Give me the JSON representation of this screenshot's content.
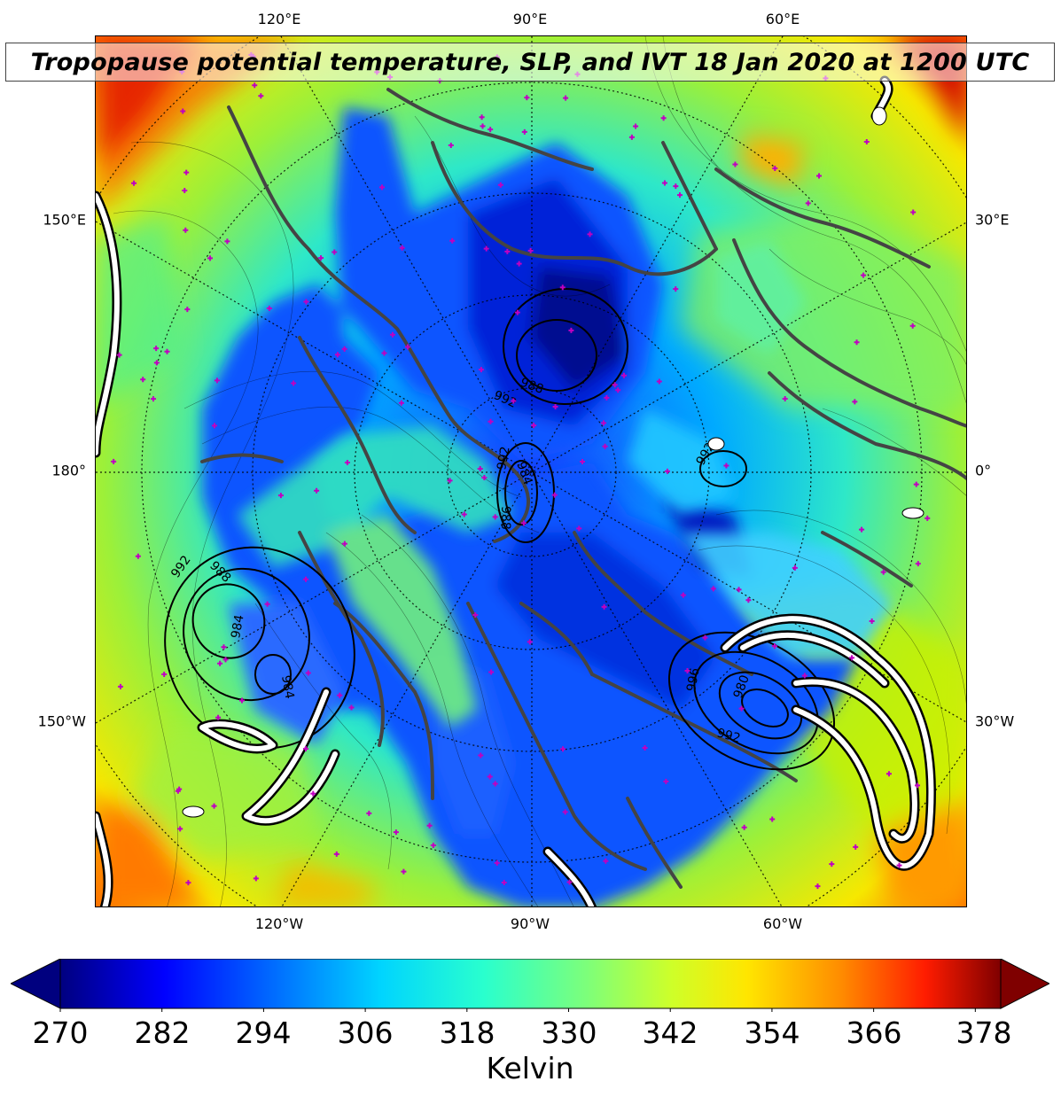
{
  "title": "Tropopause potential temperature, SLP, and IVT 18 Jan 2020 at 1200 UTC",
  "map": {
    "top_lon_labels": [
      "120°E",
      "90°E",
      "60°E"
    ],
    "bottom_lon_labels": [
      "120°W",
      "90°W",
      "60°W"
    ],
    "left_labels": [
      "150°E",
      "180°",
      "150°W"
    ],
    "right_labels": [
      "30°E",
      "0°",
      "30°W"
    ],
    "slp_contour_labels": [
      "988",
      "992",
      "992",
      "984",
      "988",
      "992",
      "992",
      "988",
      "984",
      "984",
      "996",
      "992",
      "980"
    ],
    "colors": {
      "coastlines": "#444444",
      "slp_contours": "#000000",
      "ivt_contours": "#ffffff",
      "markers": "#c000c0"
    }
  },
  "colorbar": {
    "ticks": [
      "270",
      "282",
      "294",
      "306",
      "318",
      "330",
      "342",
      "354",
      "366",
      "378"
    ],
    "min": 270,
    "max": 381,
    "label": "Kelvin",
    "colormap": "jet",
    "extend": "both"
  }
}
